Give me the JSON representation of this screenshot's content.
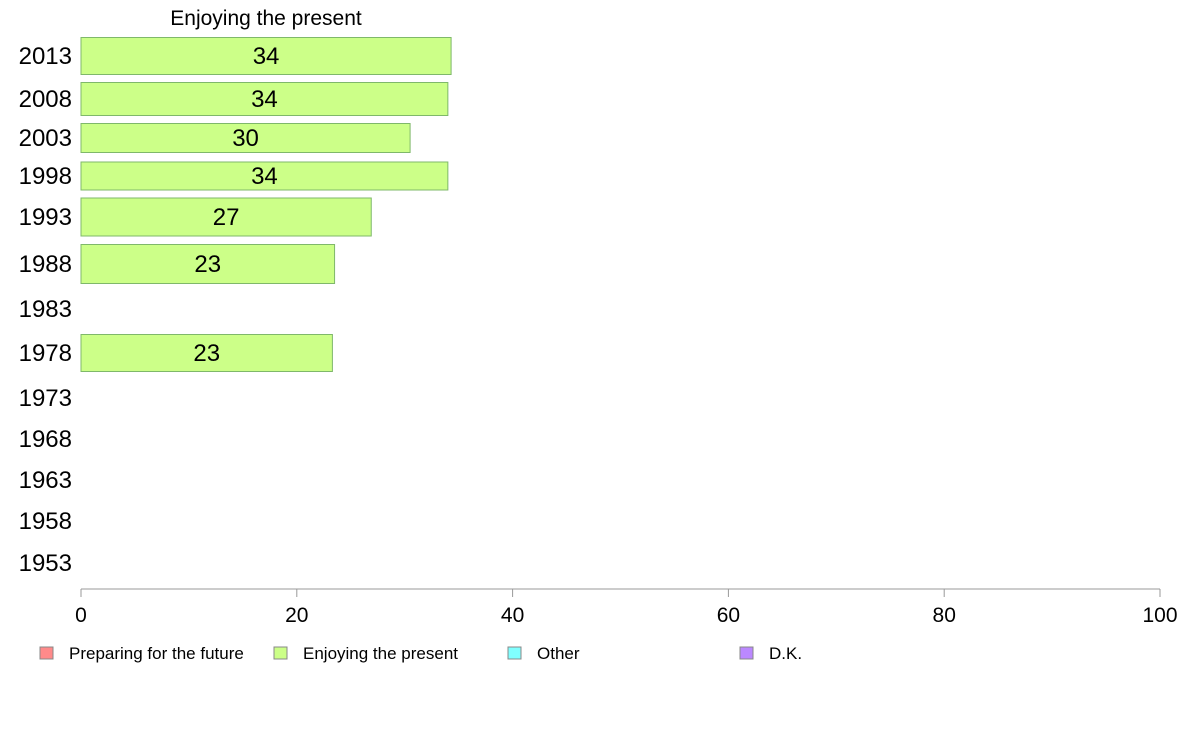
{
  "chart_data": {
    "type": "bar",
    "orientation": "horizontal",
    "title": "Enjoying the present",
    "categories": [
      "2013",
      "2008",
      "2003",
      "1998",
      "1993",
      "1988",
      "1983",
      "1978",
      "1973",
      "1968",
      "1963",
      "1958",
      "1953"
    ],
    "series": [
      {
        "name": "Enjoying the present",
        "color": "#ccff88",
        "values": [
          34.3,
          34,
          30.5,
          34,
          26.9,
          23.5,
          null,
          23.3,
          null,
          null,
          null,
          null,
          null
        ],
        "labels": [
          "34",
          "34",
          "30",
          "34",
          "27",
          "23",
          "",
          "23",
          "",
          "",
          "",
          "",
          ""
        ]
      }
    ],
    "xlim": [
      0,
      100
    ],
    "xticks": [
      "0",
      "20",
      "40",
      "60",
      "80",
      "100"
    ],
    "grid": false,
    "legend_position": "bottom",
    "legend": [
      {
        "label": "Preparing for the future",
        "color": "#ff8a8a"
      },
      {
        "label": "Enjoying the present",
        "color": "#ccff88"
      },
      {
        "label": "Other",
        "color": "#80ffff"
      },
      {
        "label": "D.K.",
        "color": "#bb88ff"
      }
    ]
  }
}
